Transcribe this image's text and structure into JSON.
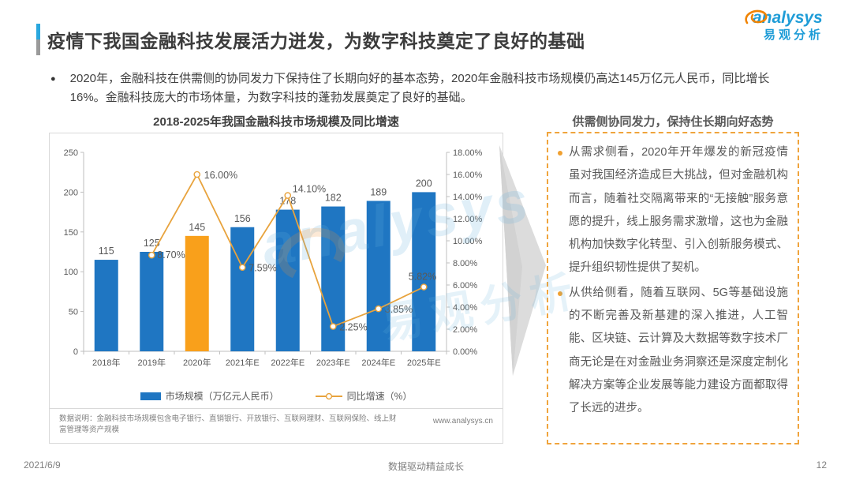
{
  "header": {
    "title": "疫情下我国金融科技发展活力迸发，为数字科技奠定了良好的基础",
    "logo": {
      "brand": "analysys",
      "brand_cn": "易观分析"
    }
  },
  "summary": {
    "marker": "●",
    "text": "2020年，金融科技在供需侧的协同发力下保持住了长期向好的基本态势，2020年金融科技市场规模仍高达145万亿元人民币，同比增长16%。金融科技庞大的市场体量，为数字科技的蓬勃发展奠定了良好的基础。"
  },
  "chart": {
    "title": "2018-2025年我国金融科技市场规模及同比增速",
    "footnote": "数据说明：金融科技市场规模包含电子银行、直销银行、开放银行、互联网理财、互联网保险、线上财富管理等资产规模",
    "source_url": "www.analysys.cn"
  },
  "chart_data": {
    "type": "bar",
    "combo": "bar+line",
    "title": "2018-2025年我国金融科技市场规模及同比增速",
    "categories": [
      "2018年",
      "2019年",
      "2020年",
      "2021年E",
      "2022年E",
      "2023年E",
      "2024年E",
      "2025年E"
    ],
    "series": [
      {
        "name": "市场规模（万亿元人民币）",
        "type": "bar",
        "values": [
          115,
          125,
          145,
          156,
          178,
          182,
          189,
          200
        ],
        "color": "#1F76C2",
        "highlight": {
          "index": 2,
          "color": "#F9A01B"
        }
      },
      {
        "name": "同比增速（%）",
        "type": "line",
        "values": [
          null,
          8.7,
          16.0,
          7.59,
          14.1,
          2.25,
          3.85,
          5.82
        ],
        "point_labels": [
          "",
          "8.70%",
          "16.00%",
          "7.59%",
          "14.10%",
          "2.25%",
          "3.85%",
          "5.82%"
        ],
        "color": "#E8A33D"
      }
    ],
    "left_axis": {
      "min": 0,
      "max": 250,
      "step": 50,
      "ticks": [
        "0",
        "50",
        "100",
        "150",
        "200",
        "250"
      ]
    },
    "right_axis": {
      "min": 0,
      "max": 18,
      "step": 2,
      "ticks": [
        "0.00%",
        "2.00%",
        "4.00%",
        "6.00%",
        "8.00%",
        "10.00%",
        "12.00%",
        "14.00%",
        "16.00%",
        "18.00%"
      ]
    },
    "grid": false,
    "legend_position": "bottom"
  },
  "panel": {
    "title": "供需侧协同发力，保持住长期向好态势",
    "bullets": [
      "从需求侧看，2020年开年爆发的新冠疫情虽对我国经济造成巨大挑战，但对金融机构而言，随着社交隔离带来的“无接触”服务意愿的提升，线上服务需求激增，这也为金融机构加快数字化转型、引入创新服务模式、提升组织韧性提供了契机。",
      "从供给侧看，随着互联网、5G等基础设施的不断完善及新基建的深入推进，人工智能、区块链、云计算及大数据等数字技术厂商无论是在对金融业务洞察还是深度定制化解决方案等企业发展等能力建设方面都取得了长远的进步。"
    ]
  },
  "watermark": {
    "brand": "analysys",
    "brand_cn": "易观分析"
  },
  "footer": {
    "date": "2021/6/9",
    "center": "数据驱动精益成长",
    "page": "12"
  }
}
